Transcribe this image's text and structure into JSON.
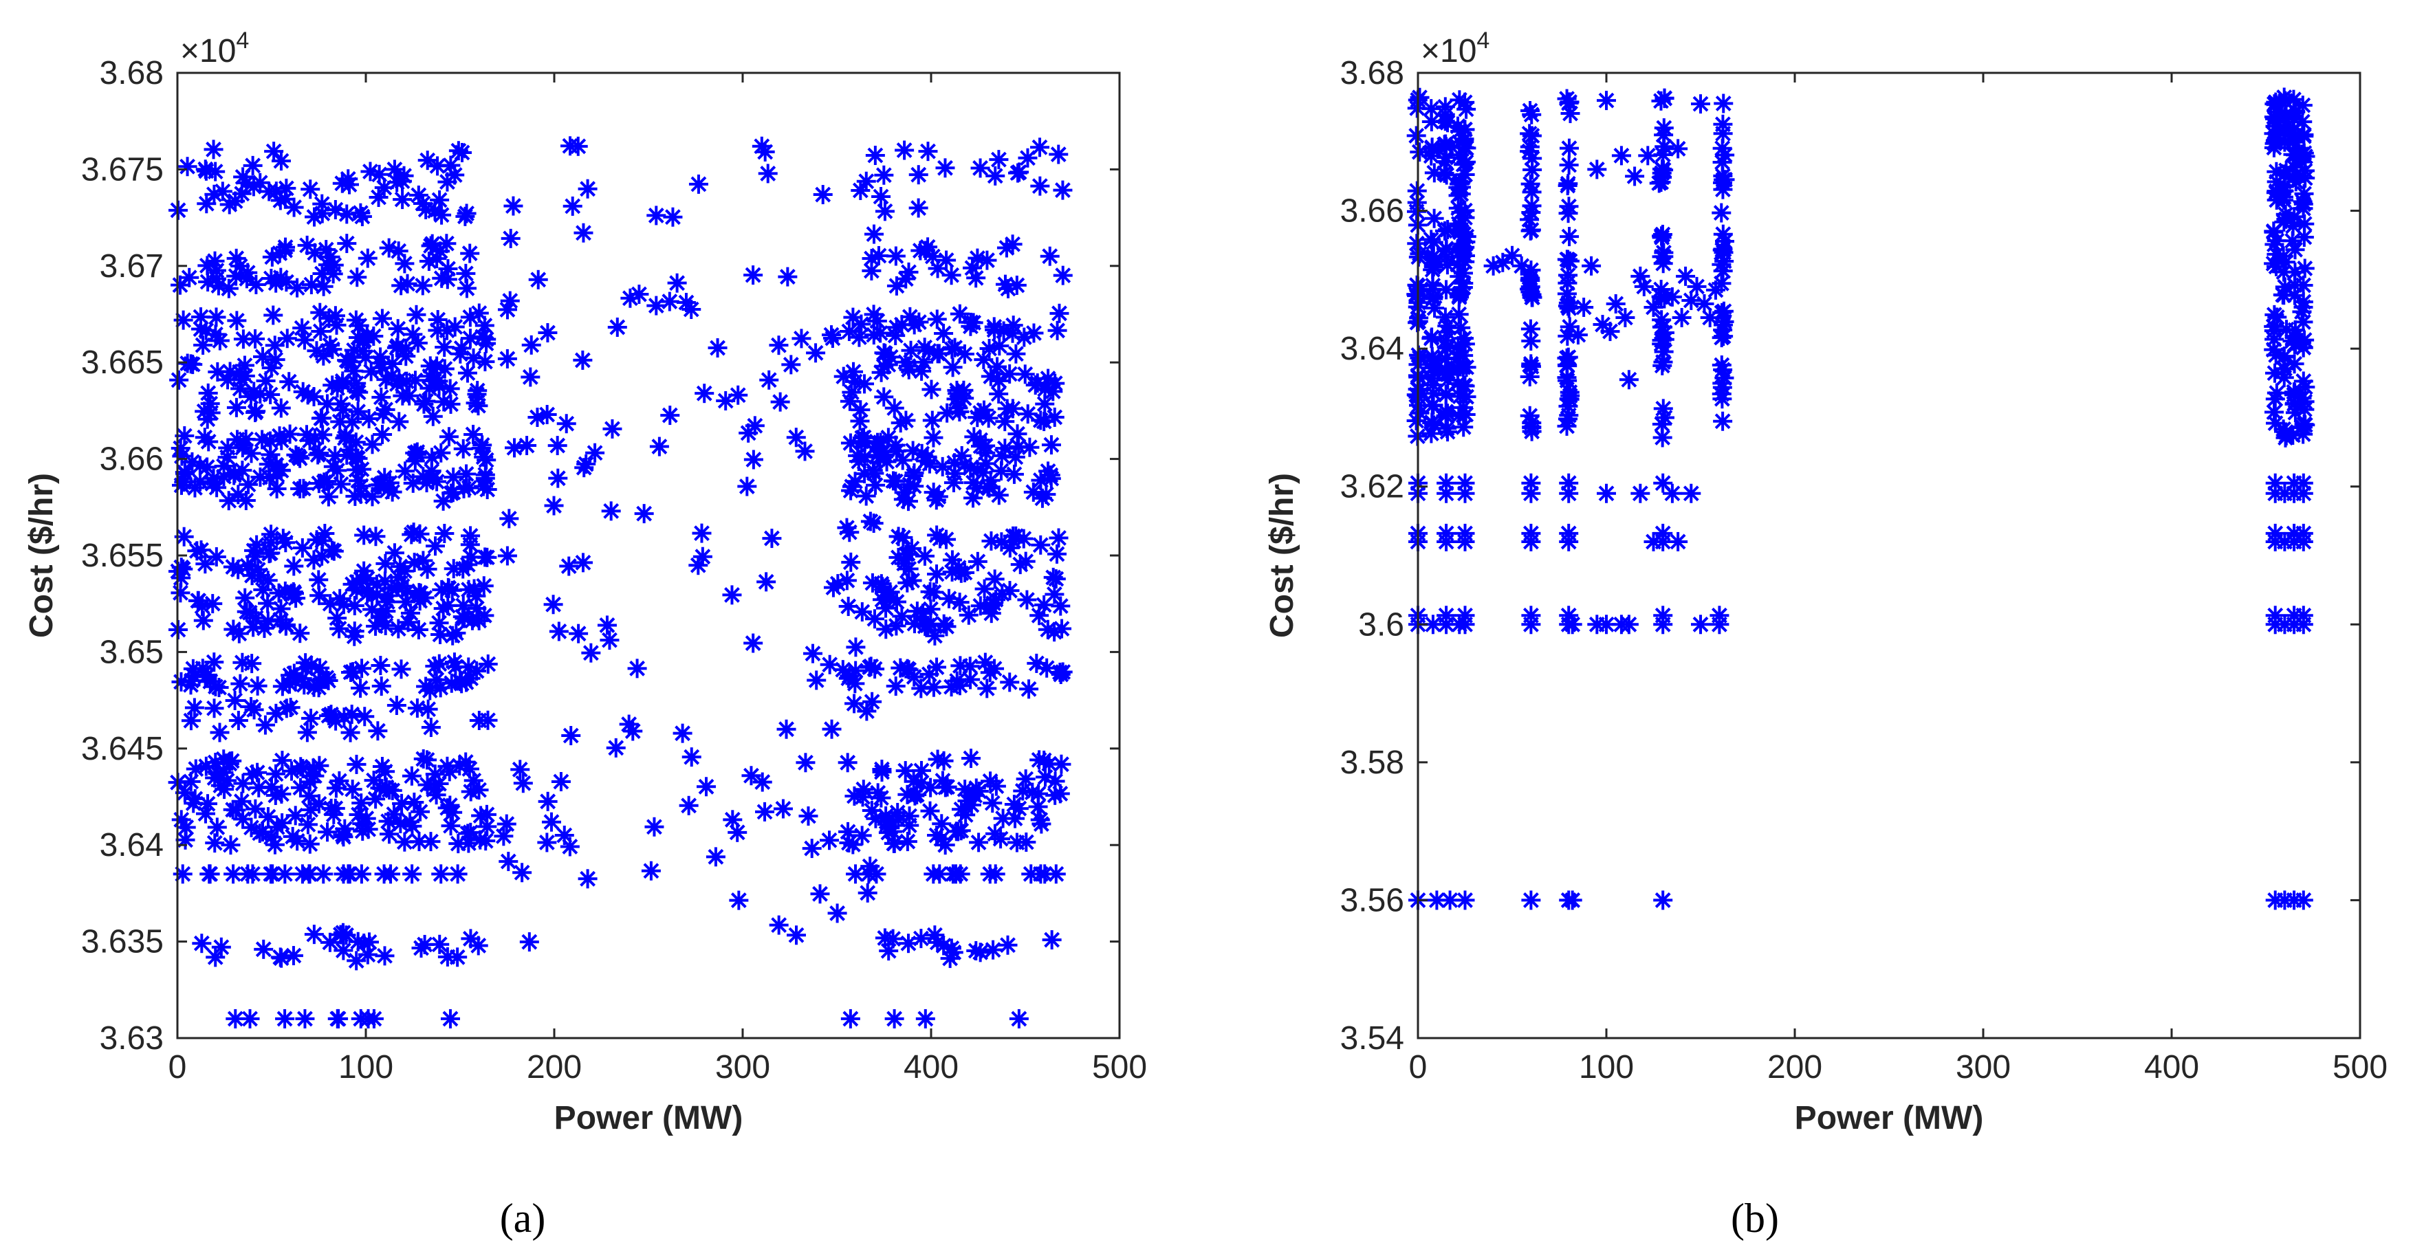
{
  "colors": {
    "marker": "#0000ff",
    "axis": "#262626",
    "background": "#ffffff"
  },
  "chart_data": [
    {
      "panel_label": "(a)",
      "type": "scatter",
      "marker": "asterisk",
      "xlabel": "Power (MW)",
      "ylabel": "Cost ($/hr)",
      "exponent_label": "×10",
      "exponent_power": "4",
      "xlim": [
        0,
        500
      ],
      "ylim": [
        3.63,
        3.68
      ],
      "xticks": [
        0,
        100,
        200,
        300,
        400,
        500
      ],
      "xtick_labels": [
        "0",
        "100",
        "200",
        "300",
        "400",
        "500"
      ],
      "yticks": [
        3.63,
        3.635,
        3.64,
        3.645,
        3.65,
        3.655,
        3.66,
        3.665,
        3.67,
        3.675,
        3.68
      ],
      "ytick_labels": [
        "3.63",
        "3.635",
        "3.64",
        "3.645",
        "3.65",
        "3.655",
        "3.66",
        "3.665",
        "3.67",
        "3.675",
        "3.68"
      ],
      "bands": [
        {
          "x": [
            0,
            160
          ],
          "y": [
            3.631
          ],
          "count": 10
        },
        {
          "x": [
            0,
            160
          ],
          "y": [
            3.634,
            3.6355
          ],
          "count": 26
        },
        {
          "x": [
            0,
            165
          ],
          "y": [
            3.6385
          ],
          "count": 22
        },
        {
          "x": [
            0,
            165
          ],
          "y": [
            3.64,
            3.6445
          ],
          "count": 130
        },
        {
          "x": [
            0,
            165
          ],
          "y": [
            3.6458,
            3.6475
          ],
          "count": 28
        },
        {
          "x": [
            0,
            165
          ],
          "y": [
            3.648,
            3.6495
          ],
          "count": 55
        },
        {
          "x": [
            0,
            165
          ],
          "y": [
            3.6508,
            3.6563
          ],
          "count": 150
        },
        {
          "x": [
            0,
            165
          ],
          "y": [
            3.6578,
            3.6613
          ],
          "count": 120
        },
        {
          "x": [
            0,
            165
          ],
          "y": [
            3.6618,
            3.6676
          ],
          "count": 150
        },
        {
          "x": [
            0,
            160
          ],
          "y": [
            3.6688,
            3.6712
          ],
          "count": 55
        },
        {
          "x": [
            0,
            160
          ],
          "y": [
            3.6725,
            3.6763
          ],
          "count": 60
        },
        {
          "x": [
            170,
            370
          ],
          "y": [
            3.634,
            3.6765
          ],
          "count": 150
        },
        {
          "x": [
            355,
            470
          ],
          "y": [
            3.631
          ],
          "count": 4
        },
        {
          "x": [
            355,
            470
          ],
          "y": [
            3.634,
            3.6355
          ],
          "count": 16
        },
        {
          "x": [
            355,
            470
          ],
          "y": [
            3.6385
          ],
          "count": 14
        },
        {
          "x": [
            355,
            470
          ],
          "y": [
            3.64,
            3.6445
          ],
          "count": 85
        },
        {
          "x": [
            355,
            470
          ],
          "y": [
            3.648,
            3.6495
          ],
          "count": 30
        },
        {
          "x": [
            355,
            470
          ],
          "y": [
            3.6508,
            3.6563
          ],
          "count": 85
        },
        {
          "x": [
            355,
            470
          ],
          "y": [
            3.6578,
            3.6613
          ],
          "count": 85
        },
        {
          "x": [
            355,
            470
          ],
          "y": [
            3.6618,
            3.6676
          ],
          "count": 95
        },
        {
          "x": [
            355,
            470
          ],
          "y": [
            3.6688,
            3.6712
          ],
          "count": 25
        },
        {
          "x": [
            355,
            470
          ],
          "y": [
            3.6725,
            3.6763
          ],
          "count": 20
        }
      ]
    },
    {
      "panel_label": "(b)",
      "type": "scatter",
      "marker": "asterisk",
      "xlabel": "Power (MW)",
      "ylabel": "Cost ($/hr)",
      "exponent_label": "×10",
      "exponent_power": "4",
      "xlim": [
        0,
        500
      ],
      "ylim": [
        3.54,
        3.68
      ],
      "xticks": [
        0,
        100,
        200,
        300,
        400,
        500
      ],
      "xtick_labels": [
        "0",
        "100",
        "200",
        "300",
        "400",
        "500"
      ],
      "yticks": [
        3.54,
        3.56,
        3.58,
        3.6,
        3.62,
        3.64,
        3.66,
        3.68
      ],
      "ytick_labels": [
        "3.54",
        "3.56",
        "3.58",
        "3.6",
        "3.62",
        "3.64",
        "3.66",
        "3.68"
      ],
      "column_x": [
        0,
        8,
        15,
        22,
        25,
        60,
        80,
        130,
        162,
        455,
        460,
        465,
        470
      ],
      "column_points": 36,
      "column_yrange": [
        3.627,
        3.6765
      ],
      "row_levels": [
        {
          "y": 3.6,
          "x": [
            0,
            8,
            15,
            22,
            25,
            60,
            80,
            82,
            95,
            100,
            108,
            112,
            130,
            150,
            160,
            455,
            460,
            465,
            470
          ]
        },
        {
          "y": 3.6013,
          "x": [
            0,
            15,
            25,
            60,
            80,
            130,
            160,
            455,
            465,
            470
          ]
        },
        {
          "y": 3.612,
          "x": [
            0,
            15,
            25,
            60,
            80,
            125,
            130,
            138,
            455,
            460,
            465,
            470
          ]
        },
        {
          "y": 3.6132,
          "x": [
            0,
            15,
            25,
            60,
            80,
            130,
            455,
            465,
            470
          ]
        },
        {
          "y": 3.619,
          "x": [
            0,
            15,
            25,
            60,
            80,
            100,
            118,
            135,
            145,
            455,
            460,
            465,
            470
          ]
        },
        {
          "y": 3.6205,
          "x": [
            0,
            15,
            25,
            60,
            80,
            130,
            455,
            465,
            470
          ]
        },
        {
          "y": 3.56,
          "x": [
            0,
            10,
            17,
            25,
            60,
            80,
            82,
            130,
            455,
            460,
            465,
            470
          ]
        }
      ],
      "scatter": [
        [
          40,
          3.652
        ],
        [
          45,
          3.6525
        ],
        [
          50,
          3.6535
        ],
        [
          55,
          3.652
        ],
        [
          85,
          3.642
        ],
        [
          88,
          3.646
        ],
        [
          92,
          3.652
        ],
        [
          95,
          3.666
        ],
        [
          98,
          3.6435
        ],
        [
          100,
          3.676
        ],
        [
          102,
          3.6425
        ],
        [
          105,
          3.6465
        ],
        [
          108,
          3.668
        ],
        [
          110,
          3.6445
        ],
        [
          112,
          3.6355
        ],
        [
          115,
          3.665
        ],
        [
          118,
          3.6505
        ],
        [
          120,
          3.649
        ],
        [
          122,
          3.668
        ],
        [
          125,
          3.646
        ],
        [
          128,
          3.664
        ],
        [
          135,
          3.6475
        ],
        [
          138,
          3.669
        ],
        [
          140,
          3.6445
        ],
        [
          142,
          3.6505
        ],
        [
          145,
          3.647
        ],
        [
          148,
          3.649
        ],
        [
          150,
          3.6755
        ],
        [
          152,
          3.6465
        ],
        [
          155,
          3.6445
        ],
        [
          158,
          3.6485
        ]
      ]
    }
  ]
}
